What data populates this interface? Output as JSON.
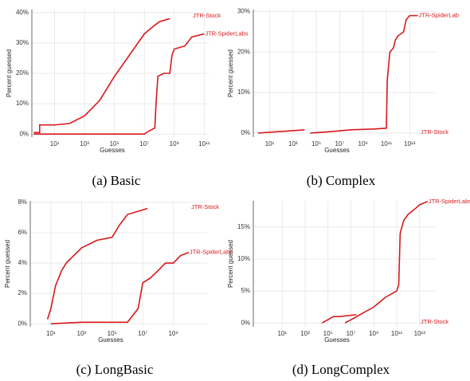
{
  "chart_data": [
    {
      "type": "line",
      "title": "(a) Basic",
      "xlabel": "Guesses",
      "ylabel": "Percent guessed",
      "xscale": "log",
      "grid": true,
      "xlim": [
        0.3,
        200000000000
      ],
      "ylim": [
        -1,
        41
      ],
      "xticks": [
        {
          "value": 10,
          "label": "10¹"
        },
        {
          "value": 1000,
          "label": "10³"
        },
        {
          "value": 100000,
          "label": "10⁵"
        },
        {
          "value": 10000000,
          "label": "10⁷"
        },
        {
          "value": 1000000000,
          "label": "10⁹"
        },
        {
          "value": 100000000000,
          "label": "10¹¹"
        }
      ],
      "yticks": [
        {
          "value": 0,
          "label": "0%"
        },
        {
          "value": 10,
          "label": "10%"
        },
        {
          "value": 20,
          "label": "20%"
        },
        {
          "value": 30,
          "label": "30%"
        },
        {
          "value": 40,
          "label": "40%"
        }
      ],
      "series": [
        {
          "name": "JTR-Stock",
          "color": "#d7191c",
          "x": [
            0.4,
            1,
            1,
            10,
            100,
            1000,
            10000,
            100000,
            1000000,
            10000000,
            30000000,
            100000000,
            500000000
          ],
          "values": [
            0.5,
            0.5,
            3,
            3,
            3.5,
            6,
            11,
            19,
            26,
            33,
            35,
            37,
            38
          ]
        },
        {
          "name": "JTR-SpiderLabs",
          "color": "#d7191c",
          "x": [
            0.4,
            10000000,
            20000000,
            50000000,
            60000000,
            80000000,
            200000000,
            500000000,
            700000000,
            1000000000,
            5000000000,
            15000000000,
            100000000000
          ],
          "values": [
            0,
            0,
            1,
            2,
            10,
            19,
            20,
            20,
            26,
            28,
            29,
            32,
            33
          ]
        }
      ]
    },
    {
      "type": "line",
      "title": "(b) Complex",
      "xlabel": "Guesses",
      "ylabel": "Percent guessed",
      "xscale": "log",
      "grid": true,
      "xlim": [
        0.4,
        2000000000000000
      ],
      "ylim": [
        -1,
        30.5
      ],
      "xticks": [
        {
          "value": 10,
          "label": "10¹"
        },
        {
          "value": 1000,
          "label": "10³"
        },
        {
          "value": 100000,
          "label": "10⁵"
        },
        {
          "value": 10000000,
          "label": "10⁷"
        },
        {
          "value": 1000000000,
          "label": "10⁹"
        },
        {
          "value": 100000000000,
          "label": "10¹¹"
        },
        {
          "value": 10000000000000,
          "label": "10¹³"
        }
      ],
      "yticks": [
        {
          "value": 0,
          "label": "0%"
        },
        {
          "value": 10,
          "label": "10%"
        },
        {
          "value": 20,
          "label": "20%"
        },
        {
          "value": 30,
          "label": "30%"
        }
      ],
      "series": [
        {
          "name": "JTR-Stock",
          "color": "#d7191c",
          "x": [
            1,
            10000
          ],
          "values": [
            0,
            0.8
          ]
        },
        {
          "name": "JTR-SpiderLab",
          "color": "#d7191c",
          "x": [
            30000,
            1000000,
            100000000,
            10000000000,
            100000000000,
            120000000000,
            200000000000,
            400000000000,
            600000000000,
            1000000000000,
            3000000000000,
            5000000000000,
            10000000000000,
            50000000000000
          ],
          "values": [
            0,
            0.3,
            0.8,
            1,
            1.2,
            13,
            20,
            21,
            23,
            24,
            25,
            28,
            29,
            29
          ]
        }
      ]
    },
    {
      "type": "line",
      "title": "(c) LongBasic",
      "xlabel": "Guesses",
      "ylabel": "Percent guessed",
      "xscale": "log",
      "grid": true,
      "xlim": [
        0.45,
        160000000000
      ],
      "ylim": [
        -0.2,
        8.1
      ],
      "xticks": [
        {
          "value": 10,
          "label": "10¹"
        },
        {
          "value": 1000,
          "label": "10³"
        },
        {
          "value": 100000,
          "label": "10⁵"
        },
        {
          "value": 10000000,
          "label": "10⁷"
        },
        {
          "value": 1000000000,
          "label": "10⁹"
        }
      ],
      "yticks": [
        {
          "value": 0,
          "label": "0%"
        },
        {
          "value": 2,
          "label": "2%"
        },
        {
          "value": 4,
          "label": "4%"
        },
        {
          "value": 6,
          "label": "6%"
        },
        {
          "value": 8,
          "label": "8%"
        }
      ],
      "series": [
        {
          "name": "JTR-Stock",
          "color": "#d7191c",
          "x": [
            6,
            10,
            20,
            50,
            100,
            1000,
            10000,
            100000,
            300000,
            1000000,
            10000000,
            20000000
          ],
          "values": [
            0.3,
            1,
            2.5,
            3.5,
            4,
            5,
            5.5,
            5.7,
            6.5,
            7.2,
            7.5,
            7.6
          ]
        },
        {
          "name": "JTR-SpiderLabs",
          "color": "#d7191c",
          "x": [
            10,
            1000,
            1000000,
            5000000,
            10000000,
            30000000,
            100000000,
            300000000,
            1000000000,
            3000000000,
            10000000000
          ],
          "values": [
            0,
            0.1,
            0.1,
            1,
            2.7,
            3,
            3.5,
            4,
            4,
            4.5,
            4.7
          ]
        }
      ]
    },
    {
      "type": "line",
      "title": "(d) LongComplex",
      "xlabel": "Guesses",
      "ylabel": "Percent guessed",
      "xscale": "log",
      "grid": true,
      "xlim": [
        0.03,
        300000000000000
      ],
      "ylim": [
        -0.6,
        19.1
      ],
      "xticks": [
        {
          "value": 10,
          "label": "10¹"
        },
        {
          "value": 1000,
          "label": "10³"
        },
        {
          "value": 100000,
          "label": "10⁵"
        },
        {
          "value": 10000000,
          "label": "10⁷"
        },
        {
          "value": 1000000000,
          "label": "10⁹"
        },
        {
          "value": 100000000000,
          "label": "10¹¹"
        },
        {
          "value": 10000000000000,
          "label": "10¹³"
        }
      ],
      "yticks": [
        {
          "value": 0,
          "label": "0%"
        },
        {
          "value": 5,
          "label": "5%"
        },
        {
          "value": 10,
          "label": "10%"
        },
        {
          "value": 15,
          "label": "15%"
        }
      ],
      "series": [
        {
          "name": "JTR-Stock",
          "color": "#d7191c",
          "x": [
            30000,
            300000,
            1000000,
            30000000
          ],
          "values": [
            0,
            1,
            1,
            1.3
          ]
        },
        {
          "name": "JTR-SpiderLabs",
          "color": "#d7191c",
          "x": [
            3000000,
            10000000,
            100000000,
            1000000000,
            10000000000,
            100000000000,
            150000000000,
            200000000000,
            400000000000,
            1000000000000,
            5000000000000,
            10000000000000,
            50000000000000
          ],
          "values": [
            0,
            0.5,
            1.5,
            2.5,
            4,
            5,
            6,
            14,
            16,
            17,
            18,
            18.5,
            19
          ]
        }
      ]
    }
  ]
}
